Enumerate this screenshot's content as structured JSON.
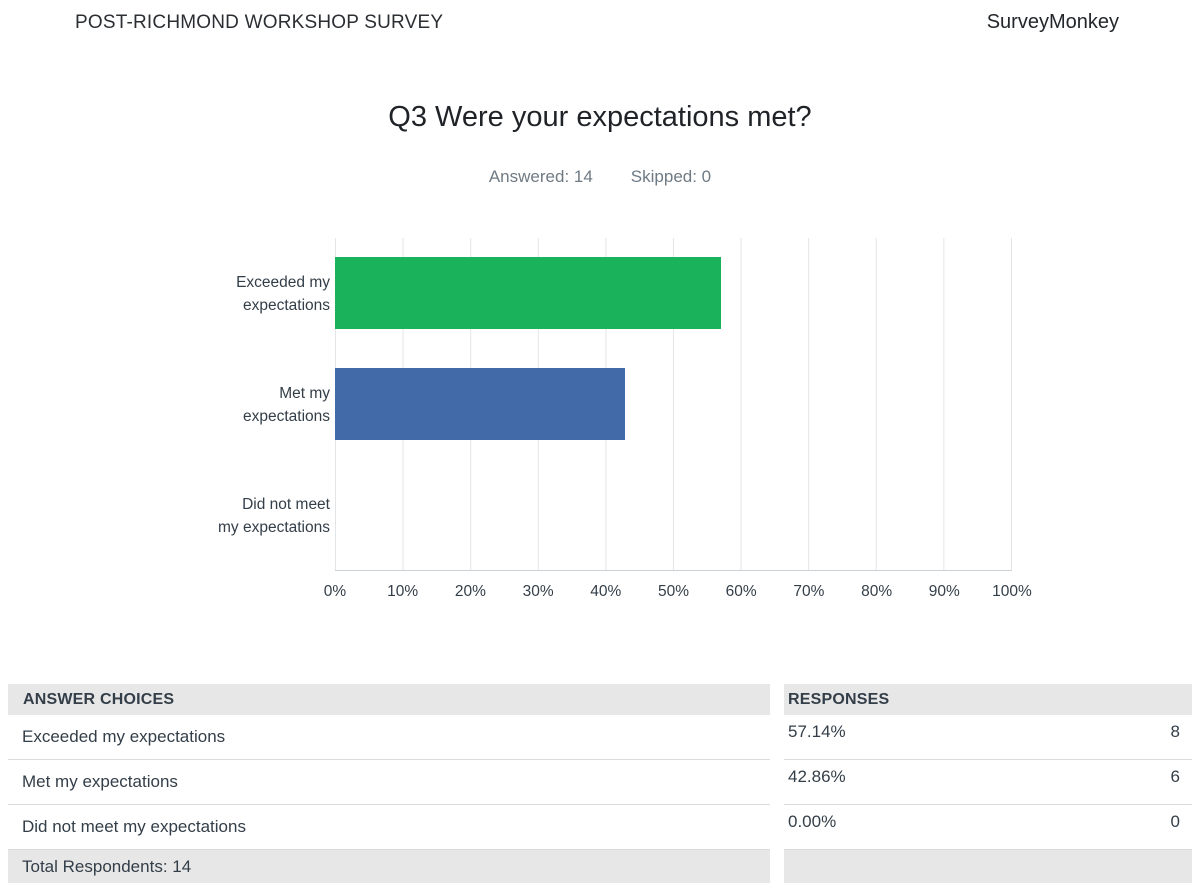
{
  "header": {
    "left": "POST-RICHMOND WORKSHOP SURVEY",
    "right": "SurveyMonkey"
  },
  "question": {
    "title": "Q3 Were your expectations met?",
    "answered": "Answered: 14",
    "skipped": "Skipped: 0"
  },
  "chart_data": {
    "type": "bar",
    "orientation": "horizontal",
    "title": "Q3 Were your expectations met?",
    "categories": [
      "Exceeded my expectations",
      "Met my expectations",
      "Did not meet my expectations"
    ],
    "category_label_lines": [
      [
        "Exceeded my",
        "expectations"
      ],
      [
        "Met my",
        "expectations"
      ],
      [
        "Did not meet",
        "my expectations"
      ]
    ],
    "values": [
      57.14,
      42.86,
      0
    ],
    "counts": [
      8,
      6,
      0
    ],
    "bar_colors": [
      "#1ab35c",
      "#4269a8",
      "#1ab35c"
    ],
    "xlabel": "",
    "ylabel": "",
    "xlim": [
      0,
      100
    ],
    "x_ticks": [
      "0%",
      "10%",
      "20%",
      "30%",
      "40%",
      "50%",
      "60%",
      "70%",
      "80%",
      "90%",
      "100%"
    ],
    "grid": true,
    "legend": "none"
  },
  "table": {
    "headers": [
      "ANSWER CHOICES",
      "RESPONSES"
    ],
    "rows": [
      {
        "choice": "Exceeded my expectations",
        "percent": "57.14%",
        "count": "8"
      },
      {
        "choice": "Met my expectations",
        "percent": "42.86%",
        "count": "6"
      },
      {
        "choice": "Did not meet my expectations",
        "percent": "0.00%",
        "count": "0"
      }
    ],
    "total_label": "Total Respondents: 14"
  },
  "colors": {
    "bar_green": "#1ab35c",
    "bar_blue": "#4269a8",
    "table_header_bg": "#e7e7e7",
    "text_dark": "#333e48",
    "text_muted": "#6e7a84",
    "gridline": "#e3e5e7"
  }
}
